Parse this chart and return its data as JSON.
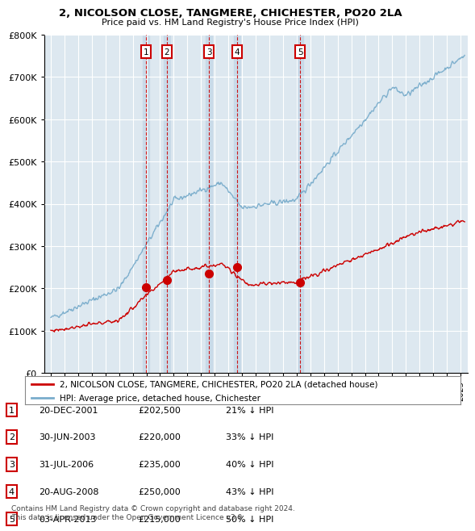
{
  "title": "2, NICOLSON CLOSE, TANGMERE, CHICHESTER, PO20 2LA",
  "subtitle": "Price paid vs. HM Land Registry's House Price Index (HPI)",
  "transactions": [
    {
      "num": 1,
      "date": "20-DEC-2001",
      "price": 202500,
      "pct": "21%",
      "year": 2001.97
    },
    {
      "num": 2,
      "date": "30-JUN-2003",
      "price": 220000,
      "pct": "33%",
      "year": 2003.5
    },
    {
      "num": 3,
      "date": "31-JUL-2006",
      "price": 235000,
      "pct": "40%",
      "year": 2006.58
    },
    {
      "num": 4,
      "date": "20-AUG-2008",
      "price": 250000,
      "pct": "43%",
      "year": 2008.64
    },
    {
      "num": 5,
      "date": "03-APR-2013",
      "price": 215000,
      "pct": "50%",
      "year": 2013.25
    }
  ],
  "legend_house": "2, NICOLSON CLOSE, TANGMERE, CHICHESTER, PO20 2LA (detached house)",
  "legend_hpi": "HPI: Average price, detached house, Chichester",
  "footer": "Contains HM Land Registry data © Crown copyright and database right 2024.\nThis data is licensed under the Open Government Licence v3.0.",
  "red_color": "#cc0000",
  "blue_color": "#7aadcc",
  "bg_color": "#dde8f0",
  "band_color": "#c5d8e8",
  "ylim": [
    0,
    800000
  ],
  "xlim_start": 1994.5,
  "xlim_end": 2025.5
}
